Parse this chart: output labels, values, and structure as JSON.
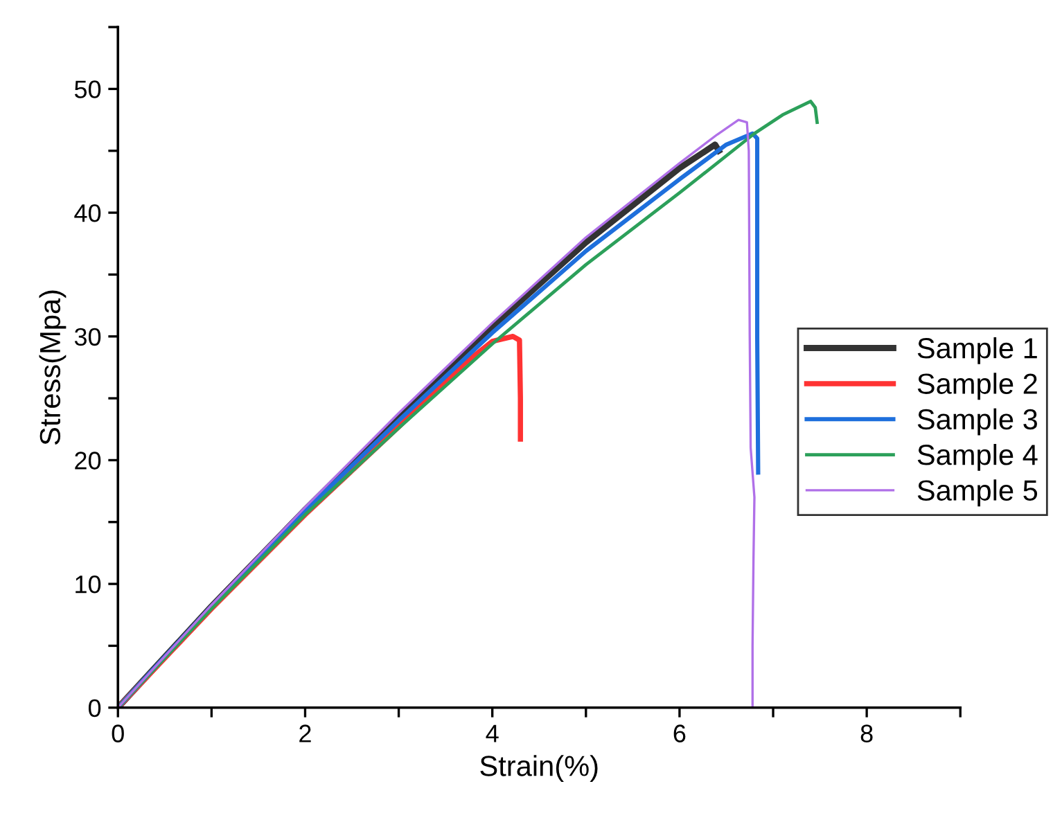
{
  "chart_data": {
    "type": "line",
    "xlabel": "Strain(%)",
    "ylabel": "Stress(Mpa)",
    "xlim": [
      0,
      9
    ],
    "ylim": [
      0,
      55
    ],
    "xticks": [
      0,
      {
        "value": 1,
        "label": null
      },
      2,
      {
        "value": 3,
        "label": null
      },
      4,
      {
        "value": 5,
        "label": null
      },
      6,
      {
        "value": 7,
        "label": null
      },
      8,
      {
        "value": 9,
        "label": null
      }
    ],
    "yticks": [
      0,
      {
        "value": 5,
        "label": null
      },
      10,
      {
        "value": 15,
        "label": null
      },
      20,
      {
        "value": 25,
        "label": null
      },
      30,
      {
        "value": 35,
        "label": null
      },
      40,
      {
        "value": 45,
        "label": null
      },
      50,
      {
        "value": 55,
        "label": null
      }
    ],
    "grid": false,
    "legend": "right",
    "marker": "none",
    "line_style": "solid",
    "series": [
      {
        "name": "Sample 1",
        "color": "#333333",
        "x": [
          0,
          1,
          2,
          3,
          4,
          5,
          6,
          6.38,
          6.42
        ],
        "values": [
          0,
          8.2,
          16.0,
          23.5,
          30.8,
          37.6,
          43.6,
          45.5,
          45.0
        ]
      },
      {
        "name": "Sample 2",
        "color": "#ff3333",
        "x": [
          0,
          1,
          2,
          3,
          3.7,
          4.0,
          4.22,
          4.29,
          4.3,
          4.3
        ],
        "values": [
          0,
          8.0,
          15.6,
          22.7,
          27.8,
          29.6,
          30.0,
          29.7,
          25,
          21.7
        ]
      },
      {
        "name": "Sample 3",
        "color": "#1e6fdc",
        "x": [
          0,
          1,
          2,
          3,
          4,
          5,
          6,
          6.5,
          6.78,
          6.83,
          6.83,
          6.84
        ],
        "values": [
          0,
          8.2,
          15.9,
          23.2,
          30.3,
          36.9,
          42.7,
          45.5,
          46.4,
          46.0,
          30,
          19
        ]
      },
      {
        "name": "Sample 4",
        "color": "#2ca05a",
        "x": [
          0,
          1,
          2,
          3,
          4,
          5,
          6,
          6.8,
          7.1,
          7.4,
          7.45,
          7.47
        ],
        "values": [
          0,
          8.0,
          15.6,
          22.6,
          29.4,
          35.8,
          41.6,
          46.4,
          47.9,
          49.0,
          48.5,
          47.3
        ]
      },
      {
        "name": "Sample 5",
        "color": "#b070e8",
        "x": [
          0,
          1,
          2,
          3,
          4,
          5,
          6,
          6.4,
          6.63,
          6.72,
          6.74,
          6.75,
          6.76,
          6.8,
          6.79,
          6.78,
          6.78
        ],
        "values": [
          0,
          8.3,
          16.2,
          23.8,
          31.1,
          38.0,
          44.0,
          46.3,
          47.5,
          47.3,
          45,
          30,
          21,
          17,
          12,
          5,
          0
        ]
      }
    ]
  }
}
